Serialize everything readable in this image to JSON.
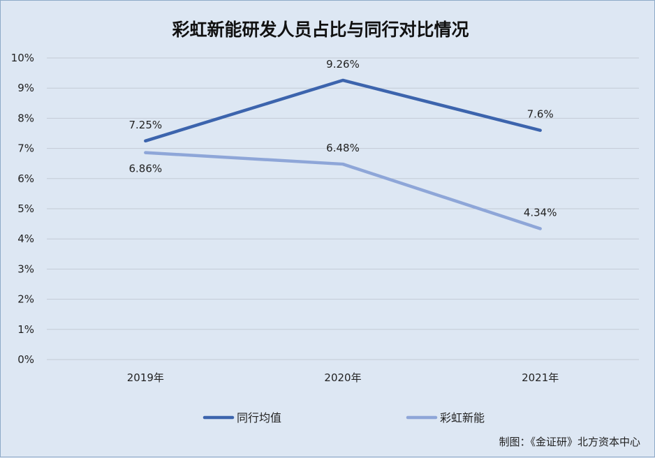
{
  "chart_data": {
    "type": "line",
    "title": "彩虹新能研发人员占比与同行对比情况",
    "categories": [
      "2019年",
      "2020年",
      "2021年"
    ],
    "y_ticks": [
      "0%",
      "1%",
      "2%",
      "3%",
      "4%",
      "5%",
      "6%",
      "7%",
      "8%",
      "9%",
      "10%"
    ],
    "ylim": [
      0,
      10
    ],
    "grid": true,
    "legend_position": "bottom",
    "series": [
      {
        "name": "同行均值",
        "values": [
          7.25,
          9.26,
          7.6
        ],
        "labels": [
          "7.25%",
          "9.26%",
          "7.6%"
        ],
        "color": "#3c64ad"
      },
      {
        "name": "彩虹新能",
        "values": [
          6.86,
          6.48,
          4.34
        ],
        "labels": [
          "6.86%",
          "6.48%",
          "4.34%"
        ],
        "color": "#8ea6d8"
      }
    ]
  },
  "credit": "制图：《金证研》北方资本中心"
}
